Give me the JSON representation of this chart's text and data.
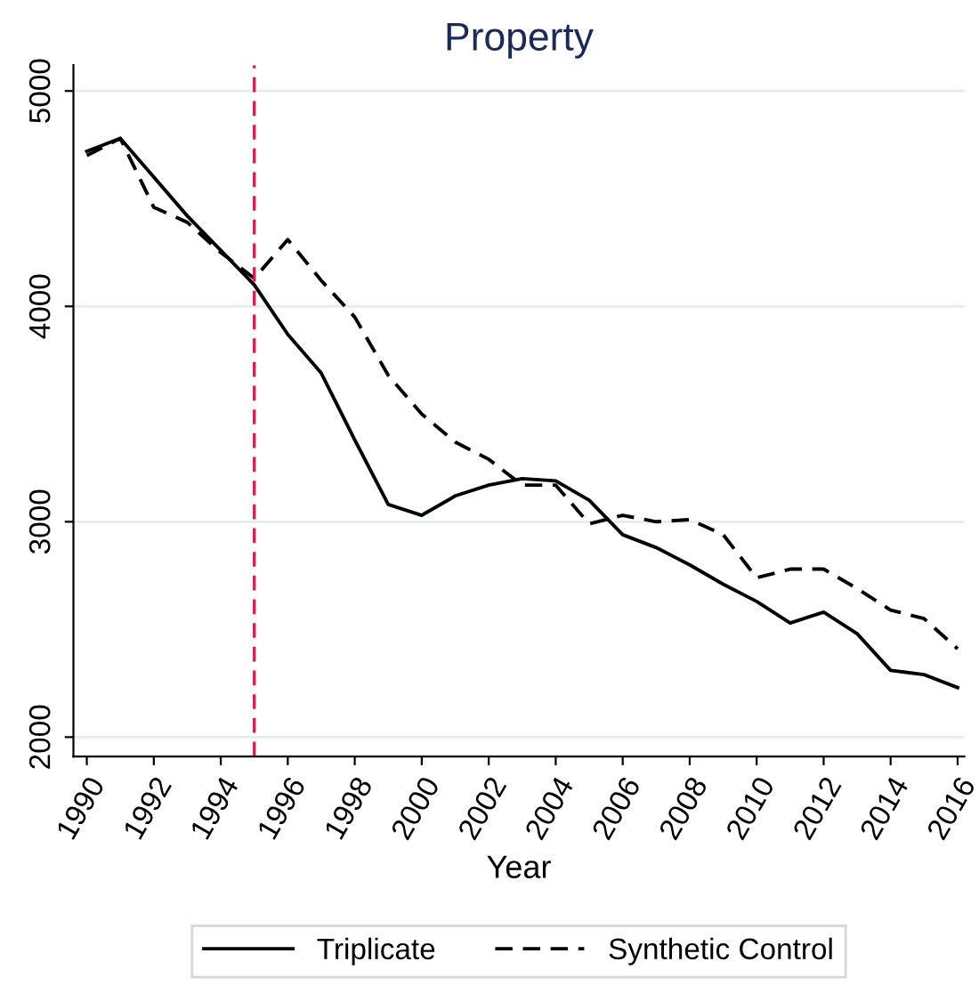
{
  "chart_data": {
    "type": "line",
    "title": "Property",
    "xlabel": "Year",
    "x": [
      1990,
      1991,
      1992,
      1993,
      1994,
      1995,
      1996,
      1997,
      1998,
      1999,
      2000,
      2001,
      2002,
      2003,
      2004,
      2005,
      2006,
      2007,
      2008,
      2009,
      2010,
      2011,
      2012,
      2013,
      2014,
      2015,
      2016
    ],
    "series": [
      {
        "name": "Triplicate",
        "color": "#000000",
        "line_style": "solid",
        "values": [
          4720,
          4780,
          4600,
          4420,
          4260,
          4100,
          3870,
          3690,
          3380,
          3080,
          3030,
          3120,
          3170,
          3200,
          3190,
          3100,
          2940,
          2880,
          2800,
          2710,
          2630,
          2530,
          2580,
          2480,
          2310,
          2290,
          2230
        ]
      },
      {
        "name": "Synthetic Control",
        "color": "#000000",
        "line_style": "dashed",
        "values": [
          4700,
          4780,
          4460,
          4390,
          4250,
          4130,
          4310,
          4120,
          3950,
          3680,
          3500,
          3370,
          3290,
          3170,
          3170,
          2990,
          3030,
          3000,
          3010,
          2940,
          2740,
          2780,
          2780,
          2690,
          2590,
          2550,
          2410
        ]
      }
    ],
    "xlim": [
      1989.6,
      2016.2
    ],
    "xticks": [
      1990,
      1992,
      1994,
      1996,
      1998,
      2000,
      2002,
      2004,
      2006,
      2008,
      2010,
      2012,
      2014,
      2016
    ],
    "ylim": [
      1910,
      5120
    ],
    "yticks": [
      2000,
      3000,
      4000,
      5000
    ],
    "ref_lines": [
      {
        "axis": "x",
        "value": 1995,
        "color": "#d6204e",
        "line_style": "dashed"
      }
    ],
    "grid": "y",
    "legend": "bottom",
    "marker": "none"
  }
}
